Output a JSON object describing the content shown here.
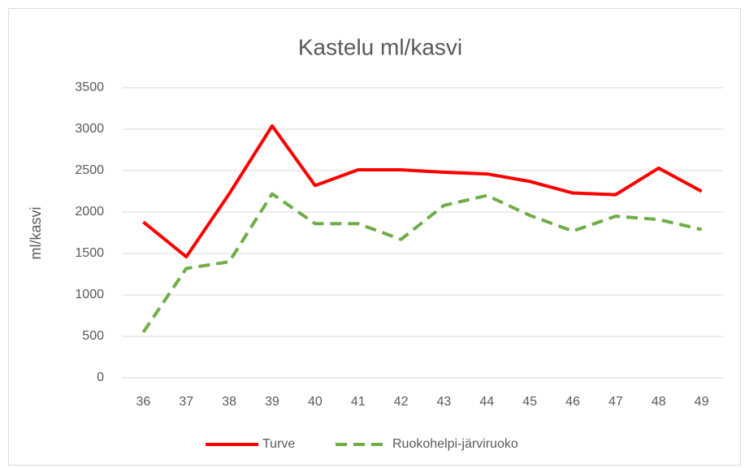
{
  "chart_data": {
    "type": "line",
    "title": "Kastelu ml/kasvi",
    "y_label": "ml/kasvi",
    "categories": [
      "36",
      "37",
      "38",
      "39",
      "40",
      "41",
      "42",
      "43",
      "44",
      "45",
      "46",
      "47",
      "48",
      "49"
    ],
    "series": [
      {
        "name": "Turve",
        "color": "#ff0000",
        "dash": false,
        "values": [
          1880,
          1460,
          2220,
          3040,
          2320,
          2510,
          2510,
          2480,
          2460,
          2370,
          2230,
          2210,
          2530,
          2250
        ]
      },
      {
        "name": "Ruokohelpi-järviruoko",
        "color": "#70ad47",
        "dash": true,
        "values": [
          550,
          1320,
          1400,
          2220,
          1860,
          1860,
          1670,
          2080,
          2200,
          1960,
          1770,
          1950,
          1910,
          1790
        ]
      }
    ],
    "ylim": [
      0,
      3500
    ],
    "yticks": [
      0,
      500,
      1000,
      1500,
      2000,
      2500,
      3000,
      3500
    ],
    "grid": true,
    "legend": "bottom"
  }
}
